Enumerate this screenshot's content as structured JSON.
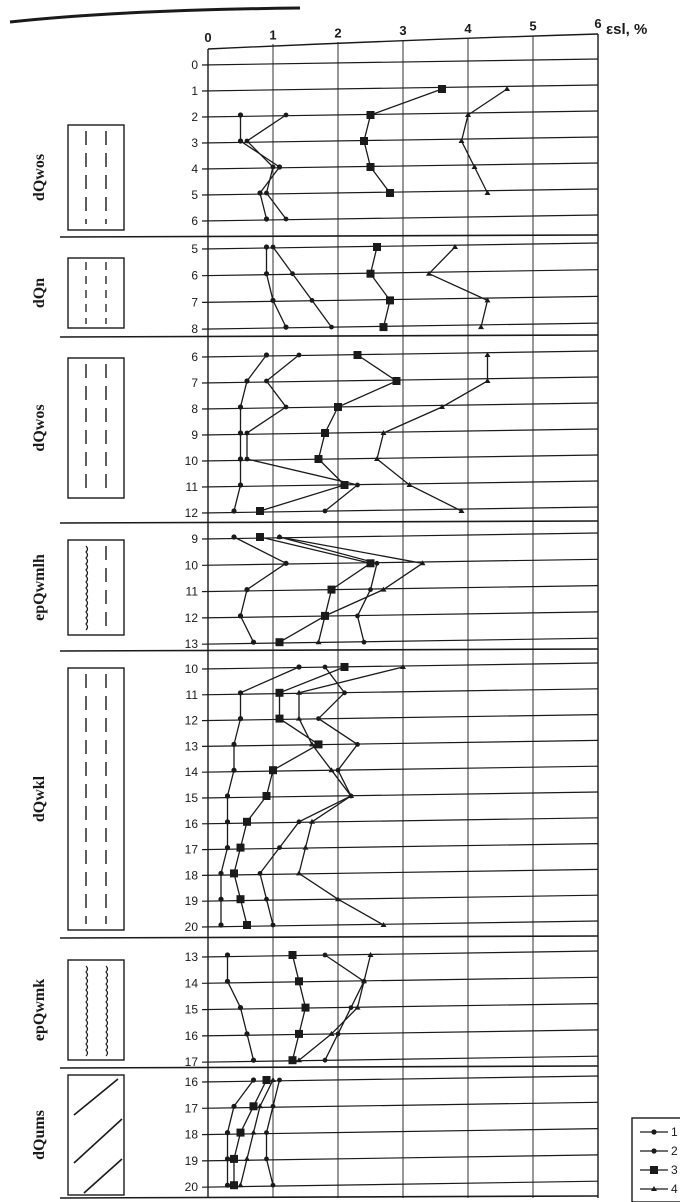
{
  "chart_data": {
    "type": "line",
    "xlabel": "εsl, %",
    "x_ticks": [
      "0",
      "1",
      "2",
      "3",
      "4",
      "5",
      "6"
    ],
    "xlim": [
      0,
      6
    ],
    "grid": true,
    "legend_position": "bottom-right",
    "legend": [
      "1",
      "2",
      "3",
      "4"
    ],
    "line_color": "#1a1a1a",
    "sections": [
      {
        "layer": "dQwos",
        "depths": [
          0,
          1,
          2,
          3,
          4,
          5,
          6
        ],
        "series": [
          {
            "name": "1",
            "values": [
              null,
              null,
              0.5,
              0.5,
              1.1,
              0.8,
              0.9
            ]
          },
          {
            "name": "2",
            "values": [
              null,
              null,
              1.2,
              0.6,
              1.0,
              0.9,
              1.2
            ]
          },
          {
            "name": "3",
            "values": [
              null,
              3.6,
              2.5,
              2.4,
              2.5,
              2.8,
              null
            ]
          },
          {
            "name": "4",
            "values": [
              null,
              4.6,
              4.0,
              3.9,
              4.1,
              4.3,
              null
            ]
          }
        ]
      },
      {
        "layer": "dQn",
        "depths": [
          5,
          6,
          7,
          8
        ],
        "series": [
          {
            "name": "1",
            "values": [
              0.9,
              0.9,
              1.0,
              1.2
            ]
          },
          {
            "name": "2",
            "values": [
              1.0,
              1.3,
              1.6,
              1.9
            ]
          },
          {
            "name": "3",
            "values": [
              2.6,
              2.5,
              2.8,
              2.7
            ]
          },
          {
            "name": "4",
            "values": [
              3.8,
              3.4,
              4.3,
              4.2
            ]
          }
        ]
      },
      {
        "layer": "dQwos",
        "depths": [
          6,
          7,
          8,
          9,
          10,
          11,
          12
        ],
        "series": [
          {
            "name": "1",
            "values": [
              0.9,
              0.6,
              0.5,
              0.5,
              0.5,
              0.5,
              0.4
            ]
          },
          {
            "name": "2",
            "values": [
              1.4,
              0.9,
              1.2,
              0.6,
              0.6,
              2.3,
              1.8
            ]
          },
          {
            "name": "3",
            "values": [
              2.3,
              2.9,
              2.0,
              1.8,
              1.7,
              2.1,
              0.8
            ]
          },
          {
            "name": "4",
            "values": [
              4.3,
              4.3,
              3.6,
              2.7,
              2.6,
              3.1,
              3.9
            ]
          }
        ]
      },
      {
        "layer": "epQwmlh",
        "depths": [
          9,
          10,
          11,
          12,
          13
        ],
        "series": [
          {
            "name": "1",
            "values": [
              0.4,
              1.2,
              0.6,
              0.5,
              0.7
            ]
          },
          {
            "name": "2",
            "values": [
              1.1,
              2.6,
              2.5,
              2.3,
              2.4
            ]
          },
          {
            "name": "3",
            "values": [
              0.8,
              2.5,
              1.9,
              1.8,
              1.1
            ]
          },
          {
            "name": "4",
            "values": [
              1.1,
              3.3,
              2.7,
              1.8,
              1.7
            ]
          }
        ]
      },
      {
        "layer": "dQwkl",
        "depths": [
          10,
          11,
          12,
          13,
          14,
          15,
          16,
          17,
          18,
          19,
          20
        ],
        "series": [
          {
            "name": "1",
            "values": [
              1.4,
              0.5,
              0.5,
              0.4,
              0.4,
              0.3,
              0.3,
              0.3,
              0.2,
              0.2,
              0.2
            ]
          },
          {
            "name": "2",
            "values": [
              1.8,
              2.1,
              1.7,
              2.3,
              2.0,
              2.2,
              1.4,
              1.1,
              0.8,
              0.9,
              1.0
            ]
          },
          {
            "name": "3",
            "values": [
              2.1,
              1.1,
              1.1,
              1.7,
              1.0,
              0.9,
              0.6,
              0.5,
              0.4,
              0.5,
              0.6
            ]
          },
          {
            "name": "4",
            "values": [
              3.0,
              1.4,
              1.4,
              1.6,
              1.9,
              2.2,
              1.6,
              1.5,
              1.4,
              2.0,
              2.7
            ]
          }
        ]
      },
      {
        "layer": "epQwmk",
        "depths": [
          13,
          14,
          15,
          16,
          17
        ],
        "series": [
          {
            "name": "1",
            "values": [
              0.3,
              0.3,
              0.5,
              0.6,
              0.7
            ]
          },
          {
            "name": "2",
            "values": [
              1.8,
              2.4,
              2.2,
              2.0,
              1.8
            ]
          },
          {
            "name": "3",
            "values": [
              1.3,
              1.4,
              1.5,
              1.4,
              1.3
            ]
          },
          {
            "name": "4",
            "values": [
              2.5,
              2.4,
              2.3,
              1.9,
              1.4
            ]
          }
        ]
      },
      {
        "layer": "dQums",
        "depths": [
          16,
          17,
          18,
          19,
          20
        ],
        "series": [
          {
            "name": "1",
            "values": [
              0.7,
              0.4,
              0.3,
              0.3,
              0.3
            ]
          },
          {
            "name": "2",
            "values": [
              1.1,
              1.0,
              0.9,
              0.9,
              1.0
            ]
          },
          {
            "name": "3",
            "values": [
              0.9,
              0.7,
              0.5,
              0.4,
              0.4
            ]
          },
          {
            "name": "4",
            "values": [
              1.0,
              0.8,
              0.7,
              0.6,
              0.5
            ]
          }
        ]
      }
    ]
  }
}
